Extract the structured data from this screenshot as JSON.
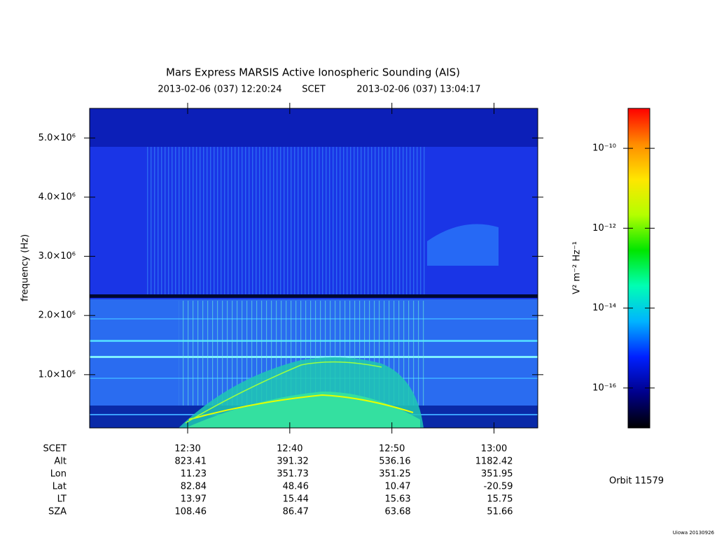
{
  "chart_data": {
    "type": "spectrogram",
    "title": "Mars Express MARSIS Active Ionospheric Sounding (AIS)",
    "subtitle_start": "2013-02-06 (037) 12:20:24",
    "x_label": "SCET",
    "subtitle_end": "2013-02-06 (037) 13:04:17",
    "ylabel": "frequency (Hz)",
    "ylim": [
      100000,
      5500000
    ],
    "yticks": [
      {
        "value": 1000000,
        "label": "1.0×10⁶"
      },
      {
        "value": 2000000,
        "label": "2.0×10⁶"
      },
      {
        "value": 3000000,
        "label": "3.0×10⁶"
      },
      {
        "value": 4000000,
        "label": "4.0×10⁶"
      },
      {
        "value": 5000000,
        "label": "5.0×10⁶"
      }
    ],
    "xlim": [
      "12:20:24",
      "13:04:17"
    ],
    "xticks": [
      "12:30",
      "12:40",
      "12:50",
      "13:00"
    ],
    "ephemeris": [
      {
        "label": "Alt",
        "values": [
          823.41,
          391.32,
          536.16,
          1182.42
        ]
      },
      {
        "label": "Lon",
        "values": [
          11.23,
          351.73,
          351.25,
          351.95
        ]
      },
      {
        "label": "Lat",
        "values": [
          82.84,
          48.46,
          10.47,
          -20.59
        ]
      },
      {
        "label": "LT",
        "values": [
          13.97,
          15.44,
          15.63,
          15.75
        ]
      },
      {
        "label": "SZA",
        "values": [
          108.46,
          86.47,
          63.68,
          51.66
        ]
      }
    ],
    "colorbar": {
      "label": "V² m⁻² Hz⁻¹",
      "log": true,
      "clim": [
        1e-17,
        1e-09
      ],
      "ticks": [
        {
          "value": 1e-16,
          "label": "10⁻¹⁶"
        },
        {
          "value": 1e-14,
          "label": "10⁻¹⁴"
        },
        {
          "value": 1e-12,
          "label": "10⁻¹²"
        },
        {
          "value": 1e-10,
          "label": "10⁻¹⁰"
        }
      ],
      "colors": [
        "#000000",
        "#00008c",
        "#0020ff",
        "#00b4ff",
        "#00ffb4",
        "#00e600",
        "#b4ff00",
        "#ffe600",
        "#ff8c00",
        "#ff0000"
      ]
    },
    "orbit": "Orbit 11579",
    "credit": "Uiowa 20130926"
  }
}
